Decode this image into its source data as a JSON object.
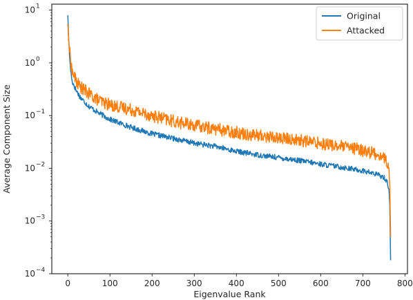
{
  "chart_data": {
    "type": "line",
    "title": "",
    "xlabel": "Eigenvalue Rank",
    "ylabel": "Average Component Size",
    "xlim": [
      -38,
      806
    ],
    "ylim": [
      0.0001,
      13
    ],
    "yscale": "log",
    "grid": false,
    "legend_position": "top-right",
    "x_ticks": [
      {
        "value": 0,
        "label": "0"
      },
      {
        "value": 100,
        "label": "100"
      },
      {
        "value": 200,
        "label": "200"
      },
      {
        "value": 300,
        "label": "300"
      },
      {
        "value": 400,
        "label": "400"
      },
      {
        "value": 500,
        "label": "500"
      },
      {
        "value": 600,
        "label": "600"
      },
      {
        "value": 700,
        "label": "700"
      },
      {
        "value": 800,
        "label": "800"
      }
    ],
    "y_ticks": [
      {
        "value": 10,
        "base": "10",
        "exp": "1"
      },
      {
        "value": 1,
        "base": "10",
        "exp": "0"
      },
      {
        "value": 0.1,
        "base": "10",
        "exp": "−1"
      },
      {
        "value": 0.01,
        "base": "10",
        "exp": "−2"
      },
      {
        "value": 0.001,
        "base": "10",
        "exp": "−3"
      },
      {
        "value": 0.0001,
        "base": "10",
        "exp": "−4"
      }
    ],
    "series": [
      {
        "name": "Original",
        "color": "#1f77b4",
        "noise": 0.05,
        "points": [
          [
            0,
            8.0
          ],
          [
            2,
            3.0
          ],
          [
            5,
            1.0
          ],
          [
            10,
            0.45
          ],
          [
            20,
            0.3
          ],
          [
            30,
            0.22
          ],
          [
            50,
            0.15
          ],
          [
            75,
            0.11
          ],
          [
            100,
            0.085
          ],
          [
            150,
            0.06
          ],
          [
            200,
            0.045
          ],
          [
            250,
            0.037
          ],
          [
            300,
            0.03
          ],
          [
            350,
            0.026
          ],
          [
            400,
            0.021
          ],
          [
            450,
            0.018
          ],
          [
            500,
            0.016
          ],
          [
            550,
            0.014
          ],
          [
            600,
            0.012
          ],
          [
            650,
            0.0105
          ],
          [
            700,
            0.009
          ],
          [
            730,
            0.0078
          ],
          [
            750,
            0.0068
          ],
          [
            758,
            0.0055
          ],
          [
            762,
            0.004
          ],
          [
            764,
            0.002
          ],
          [
            766,
            0.00018
          ]
        ]
      },
      {
        "name": "Attacked",
        "color": "#ff7f0e",
        "noise": 0.12,
        "points": [
          [
            0,
            5.5
          ],
          [
            2,
            2.6
          ],
          [
            5,
            1.5
          ],
          [
            10,
            0.7
          ],
          [
            20,
            0.45
          ],
          [
            30,
            0.35
          ],
          [
            50,
            0.26
          ],
          [
            75,
            0.19
          ],
          [
            100,
            0.16
          ],
          [
            150,
            0.13
          ],
          [
            200,
            0.1
          ],
          [
            250,
            0.078
          ],
          [
            300,
            0.065
          ],
          [
            350,
            0.056
          ],
          [
            400,
            0.048
          ],
          [
            450,
            0.042
          ],
          [
            500,
            0.038
          ],
          [
            550,
            0.034
          ],
          [
            600,
            0.03
          ],
          [
            650,
            0.026
          ],
          [
            700,
            0.022
          ],
          [
            730,
            0.019
          ],
          [
            750,
            0.016
          ],
          [
            758,
            0.013
          ],
          [
            762,
            0.008
          ],
          [
            764,
            0.005
          ],
          [
            766,
            0.0005
          ]
        ]
      }
    ]
  }
}
